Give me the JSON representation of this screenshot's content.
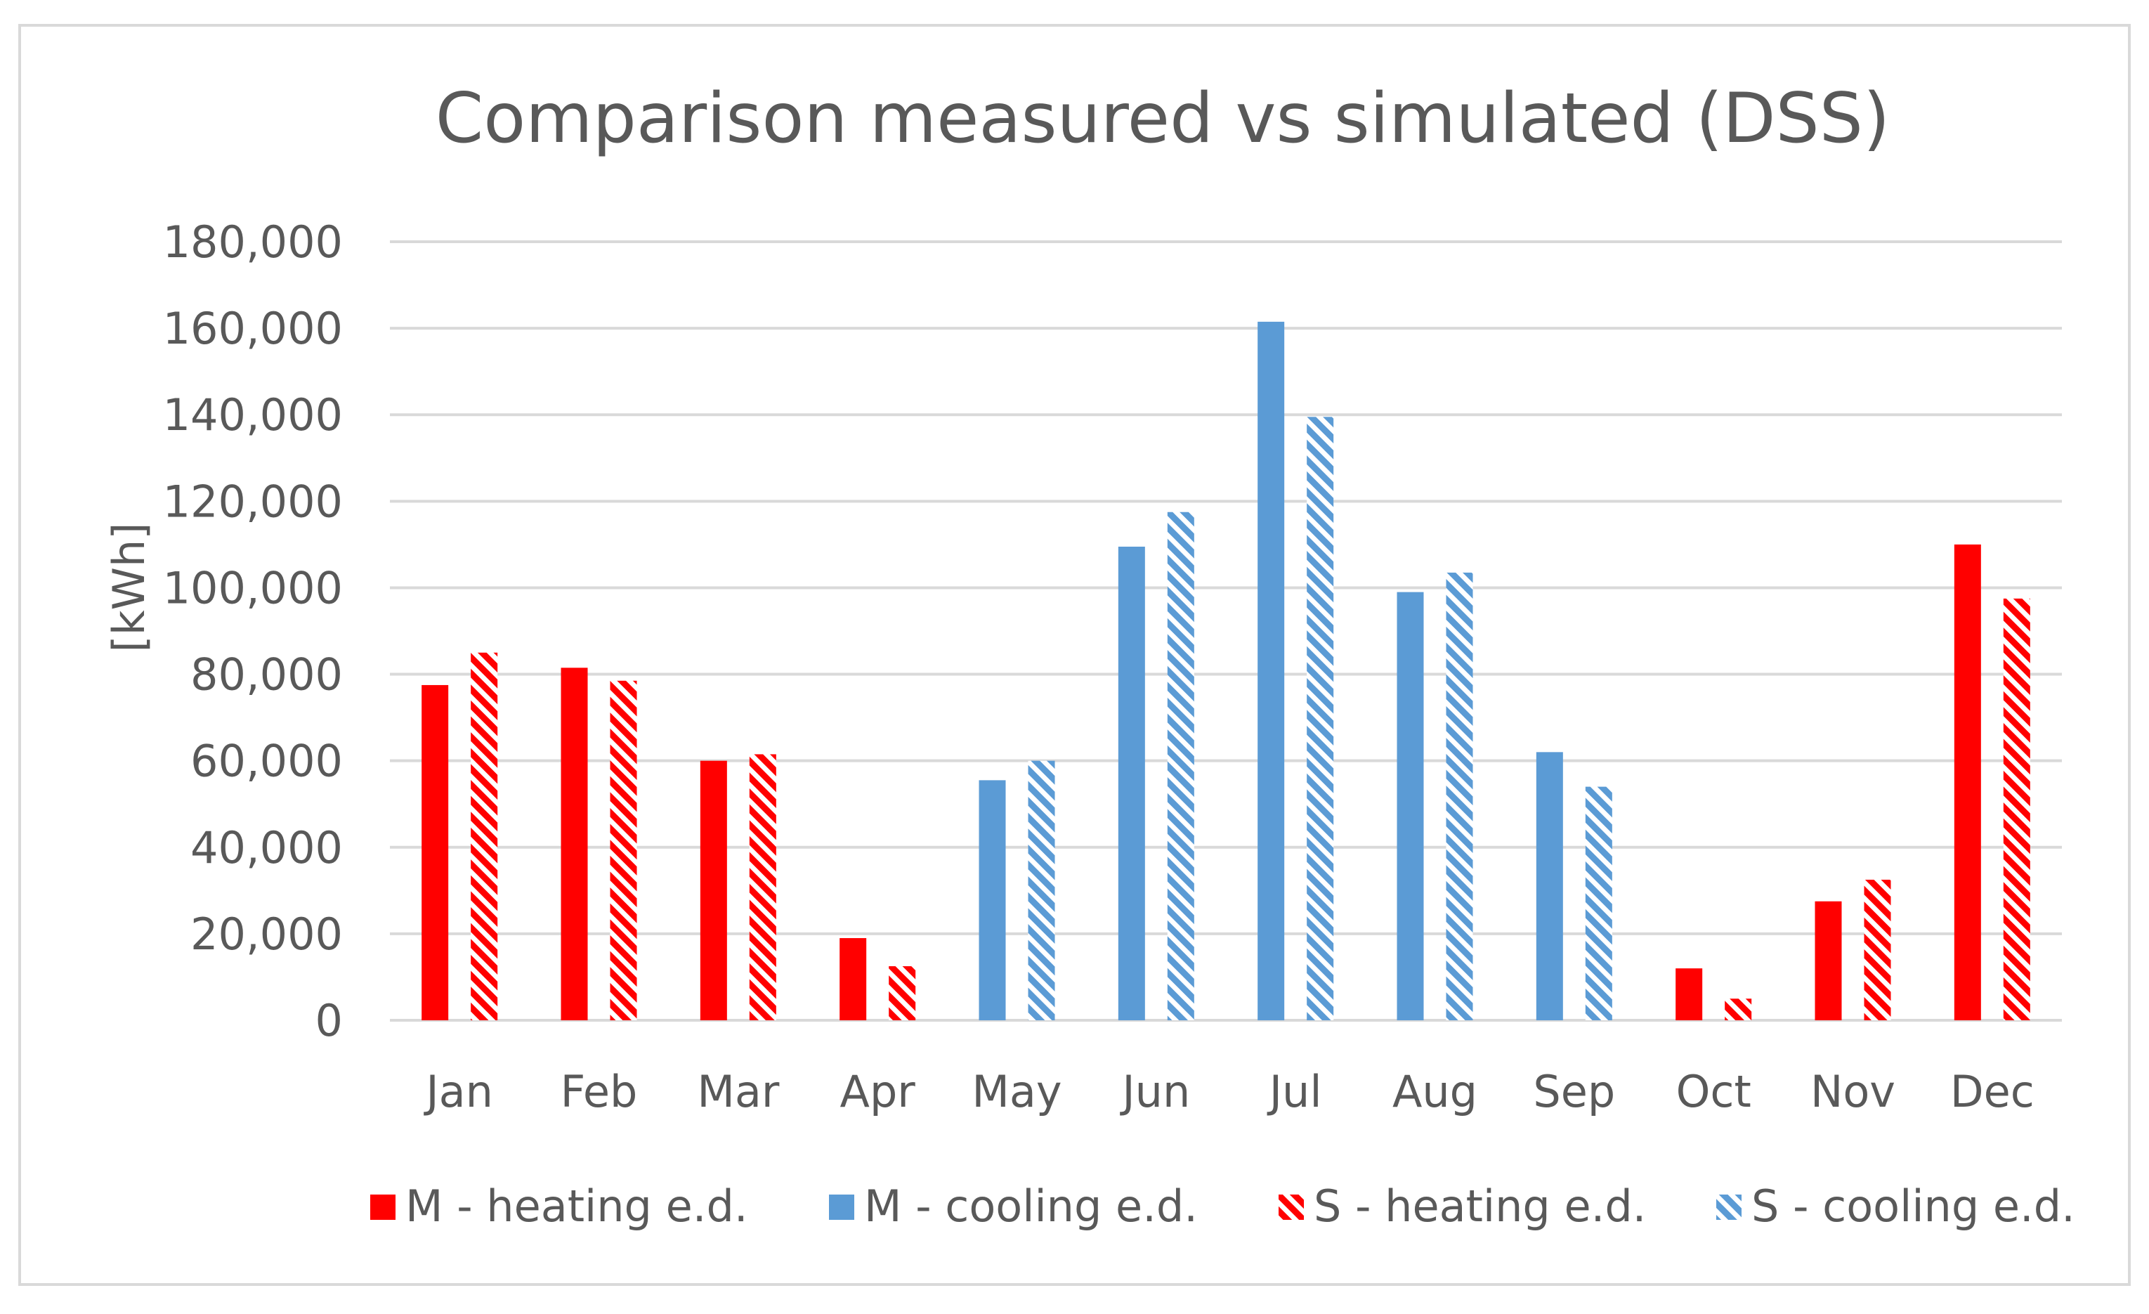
{
  "chart_data": {
    "type": "bar",
    "title": "Comparison measured vs simulated (DSS)",
    "xlabel": "",
    "ylabel": "[kWh]",
    "ylim": [
      0,
      180000
    ],
    "yticks": [
      0,
      20000,
      40000,
      60000,
      80000,
      100000,
      120000,
      140000,
      160000,
      180000
    ],
    "ytick_labels": [
      "0",
      "20,000",
      "40,000",
      "60,000",
      "80,000",
      "100,000",
      "120,000",
      "140,000",
      "160,000",
      "180,000"
    ],
    "grid": true,
    "legend_position": "bottom",
    "categories": [
      "Jan",
      "Feb",
      "Mar",
      "Apr",
      "May",
      "Jun",
      "Jul",
      "Aug",
      "Sep",
      "Oct",
      "Nov",
      "Dec"
    ],
    "series": [
      {
        "name": "M - heating e.d.",
        "style": "solid",
        "color": "#ff0000",
        "values": [
          77500,
          81500,
          60000,
          19000,
          null,
          null,
          null,
          null,
          null,
          12000,
          27500,
          110000
        ]
      },
      {
        "name": "M - cooling e.d.",
        "style": "solid",
        "color": "#5b9bd5",
        "values": [
          null,
          null,
          null,
          null,
          55500,
          109500,
          161500,
          99000,
          62000,
          null,
          null,
          null
        ]
      },
      {
        "name": "S - heating e.d.",
        "style": "hatched",
        "color": "#ff0000",
        "values": [
          85000,
          78500,
          61500,
          12500,
          null,
          null,
          null,
          null,
          null,
          5000,
          32500,
          97500
        ]
      },
      {
        "name": "S - cooling e.d.",
        "style": "hatched",
        "color": "#5b9bd5",
        "values": [
          null,
          null,
          null,
          null,
          60000,
          117500,
          139500,
          103500,
          54000,
          null,
          null,
          null
        ]
      }
    ]
  }
}
